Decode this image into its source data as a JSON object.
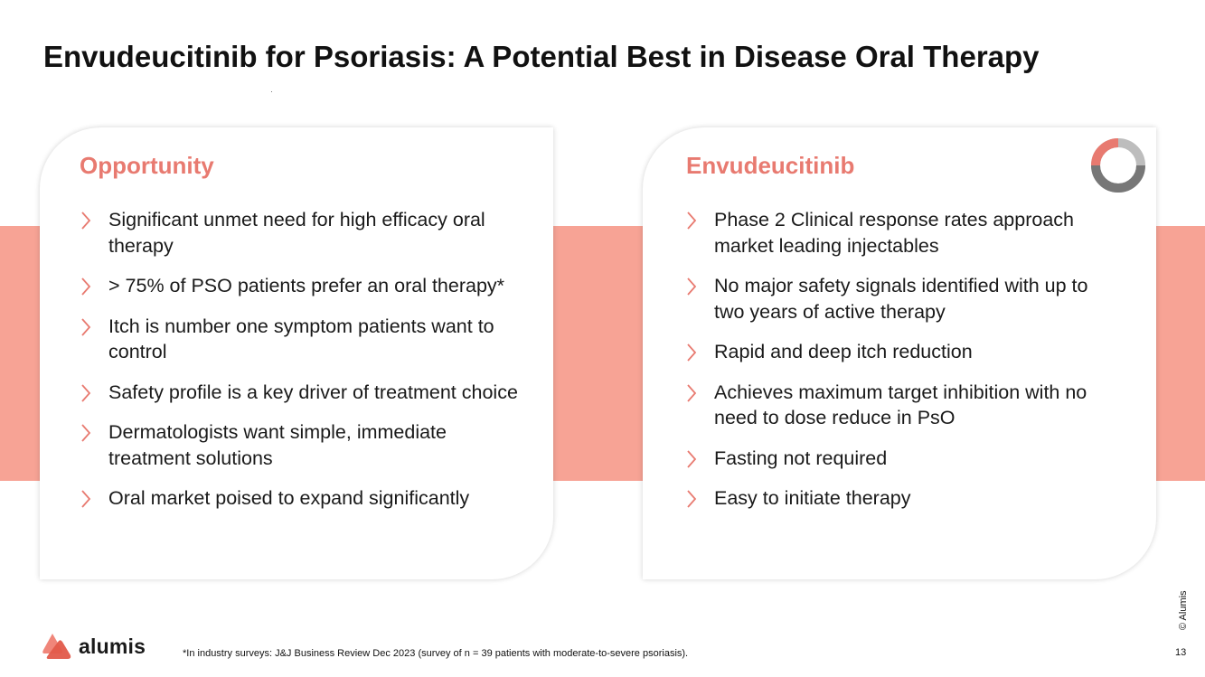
{
  "title": "Envudeucitinib for Psoriasis: A Potential Best in Disease Oral Therapy",
  "colors": {
    "accent": "#e87a70",
    "band": "#f7a395",
    "ring_gray": "#bdbdbd",
    "ring_dark": "#777777"
  },
  "left_card": {
    "heading": "Opportunity",
    "items": [
      "Significant unmet need for high efficacy oral therapy",
      "> 75% of PSO patients prefer an oral therapy*",
      "Itch is number one symptom patients want to control",
      "Safety profile is a key driver of treatment choice",
      "Dermatologists want simple, immediate treatment solutions",
      "Oral market poised to expand significantly"
    ]
  },
  "right_card": {
    "heading": "Envudeucitinib",
    "icon": "donut-ring-icon",
    "items": [
      "Phase 2 Clinical response rates approach market leading injectables",
      "No major safety signals identified with up to two years of active therapy",
      "Rapid and deep itch reduction",
      "Achieves maximum target inhibition with no need to dose reduce in PsO",
      "Fasting not required",
      "Easy to initiate therapy"
    ]
  },
  "footer": {
    "logo_text": "alumis",
    "footnote": "*In industry surveys: J&J Business Review Dec 2023 (survey of n = 39 patients with moderate-to-severe psoriasis).",
    "page_number": "13",
    "copyright": "© Alumis"
  }
}
